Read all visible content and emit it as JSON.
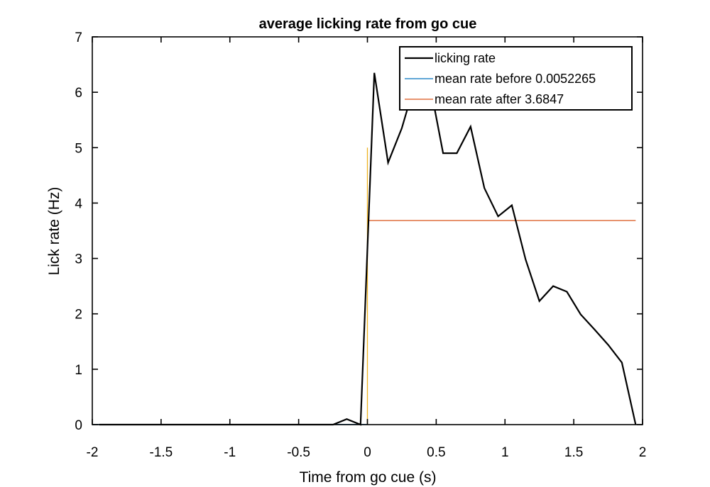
{
  "chart_data": {
    "type": "line",
    "title": "average licking rate from go cue",
    "xlabel": "Time from go cue (s)",
    "ylabel": "Lick rate (Hz)",
    "xlim": [
      -2,
      2
    ],
    "ylim": [
      0,
      7
    ],
    "xticks": [
      -2,
      -1.5,
      -1,
      -0.5,
      0,
      0.5,
      1,
      1.5,
      2
    ],
    "xtick_labels": [
      "-2",
      "-1.5",
      "-1",
      "-0.5",
      "0",
      "0.5",
      "1",
      "1.5",
      "2"
    ],
    "yticks": [
      0,
      1,
      2,
      3,
      4,
      5,
      6,
      7
    ],
    "ytick_labels": [
      "0",
      "1",
      "2",
      "3",
      "4",
      "5",
      "6",
      "7"
    ],
    "grid": false,
    "legend_position": "top-right",
    "series": [
      {
        "name": "licking rate",
        "color": "#000000",
        "x": [
          -1.95,
          -1.85,
          -1.75,
          -1.65,
          -1.55,
          -1.45,
          -1.35,
          -1.25,
          -1.15,
          -1.05,
          -0.95,
          -0.85,
          -0.75,
          -0.65,
          -0.55,
          -0.45,
          -0.35,
          -0.25,
          -0.15,
          -0.05,
          0.05,
          0.15,
          0.25,
          0.35,
          0.45,
          0.55,
          0.65,
          0.75,
          0.85,
          0.95,
          1.05,
          1.15,
          1.25,
          1.35,
          1.45,
          1.55,
          1.65,
          1.75,
          1.85,
          1.95
        ],
        "y": [
          0,
          0,
          0,
          0,
          0,
          0,
          0,
          0,
          0,
          0,
          0,
          0,
          0,
          0,
          0,
          0,
          0,
          0,
          0.1,
          0,
          6.35,
          4.73,
          5.35,
          6.2,
          6.2,
          4.9,
          4.9,
          5.38,
          4.27,
          3.76,
          3.96,
          2.98,
          2.23,
          2.5,
          2.4,
          1.99,
          1.72,
          1.44,
          1.12,
          0
        ]
      },
      {
        "name": "mean rate before 0.0052265",
        "color": "#0072BD",
        "x": [
          -2,
          0
        ],
        "y": [
          0.0052265,
          0.0052265
        ]
      },
      {
        "name": "mean rate after 3.6847",
        "color": "#D95319",
        "x": [
          0,
          1.95
        ],
        "y": [
          3.6847,
          3.6847
        ]
      },
      {
        "color": "#EDB120",
        "x": [
          0,
          0
        ],
        "y": [
          0,
          5
        ]
      }
    ]
  }
}
